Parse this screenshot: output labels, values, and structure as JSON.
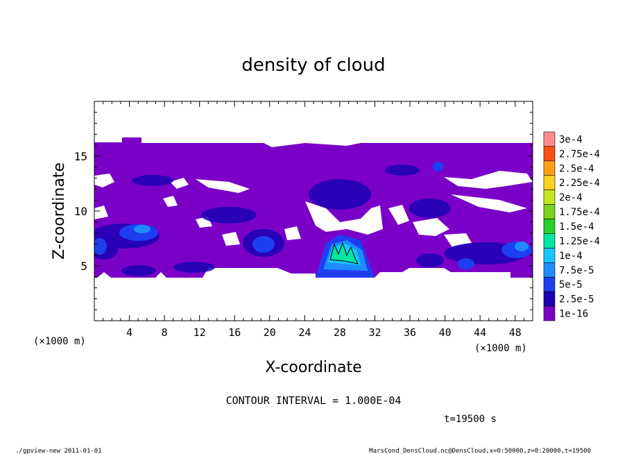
{
  "chart_data": {
    "type": "heatmap",
    "title": "density of cloud",
    "xlabel": "X-coordinate",
    "ylabel": "Z-coordinate",
    "x_unit": "(×1000 m)",
    "x_unit_right": "(×1000 m)",
    "xlim": [
      0,
      50
    ],
    "ylim": [
      0,
      20
    ],
    "x_ticks": [
      4,
      8,
      12,
      16,
      20,
      24,
      28,
      32,
      36,
      40,
      44,
      48
    ],
    "x_tick_labels": [
      "4",
      "8",
      "12",
      "16",
      "20",
      "24",
      "28",
      "32",
      "36",
      "40",
      "44",
      "48"
    ],
    "y_ticks": [
      5,
      10,
      15
    ],
    "y_tick_labels": [
      "5",
      "10",
      "15"
    ],
    "contour_levels": [
      "1e-16",
      "2.5e-5",
      "5e-5",
      "7.5e-5",
      "1e-4",
      "1.25e-4",
      "1.5e-4",
      "1.75e-4",
      "2e-4",
      "2.25e-4",
      "2.5e-4",
      "2.75e-4",
      "3e-4"
    ],
    "level_colors": [
      "#7a00c8",
      "#1c00b4",
      "#1e3ff0",
      "#1e8cff",
      "#14c8ff",
      "#00e6a0",
      "#28d228",
      "#7ad21e",
      "#c8e61e",
      "#ffd21e",
      "#ffa014",
      "#ff5014",
      "#ff8c8c"
    ],
    "cloud_regions": [
      {
        "level": 0,
        "x": [
          0,
          50
        ],
        "z": [
          4,
          16
        ]
      },
      {
        "level": 1,
        "x": [
          0,
          50
        ],
        "z": [
          4,
          11
        ]
      },
      {
        "level": 2,
        "x": [
          26,
          32
        ],
        "z": [
          4,
          7.5
        ]
      },
      {
        "level": 3,
        "x": [
          27,
          30
        ],
        "z": [
          5.5,
          7.2
        ]
      },
      {
        "level": 4,
        "x": [
          27.5,
          29.5
        ],
        "z": [
          5.8,
          7
        ]
      }
    ],
    "contour_interval": "CONTOUR INTERVAL = 1.000E-04",
    "time_label": "t=19500 s"
  },
  "footer": {
    "left": "./gpview-new   2011-01-01",
    "right": "MarsCond_DensCloud.nc@DensCloud,x=0:50000,z=0:20000,t=19500"
  },
  "colors": {
    "background": "#ffffff",
    "frame": "#000000"
  }
}
